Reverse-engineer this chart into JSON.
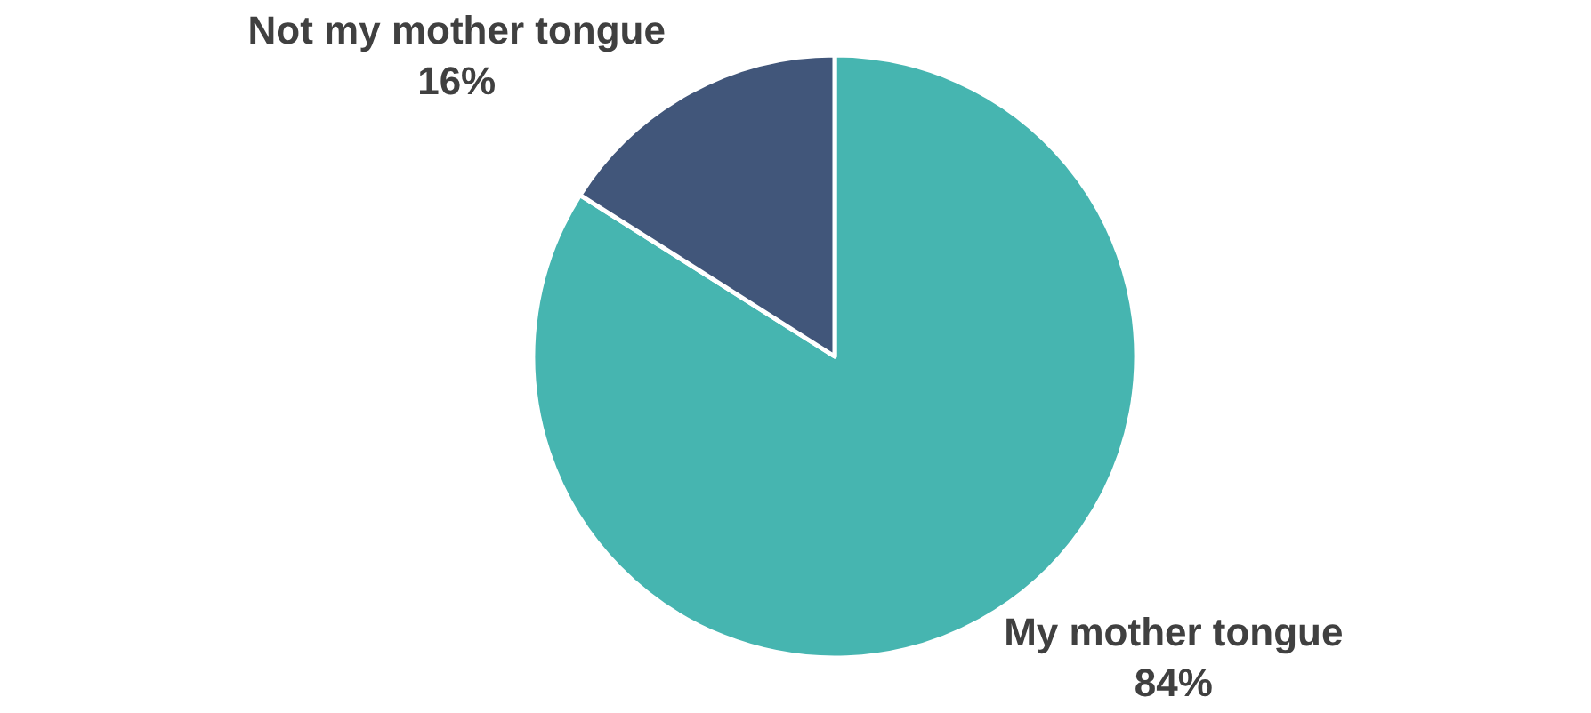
{
  "chart_data": {
    "type": "pie",
    "categories": [
      "My mother tongue",
      "Not my mother tongue"
    ],
    "values": [
      84,
      16
    ],
    "value_labels": [
      "84%",
      "16%"
    ],
    "colors": [
      "#46b5b0",
      "#41567a"
    ],
    "legend": false
  }
}
